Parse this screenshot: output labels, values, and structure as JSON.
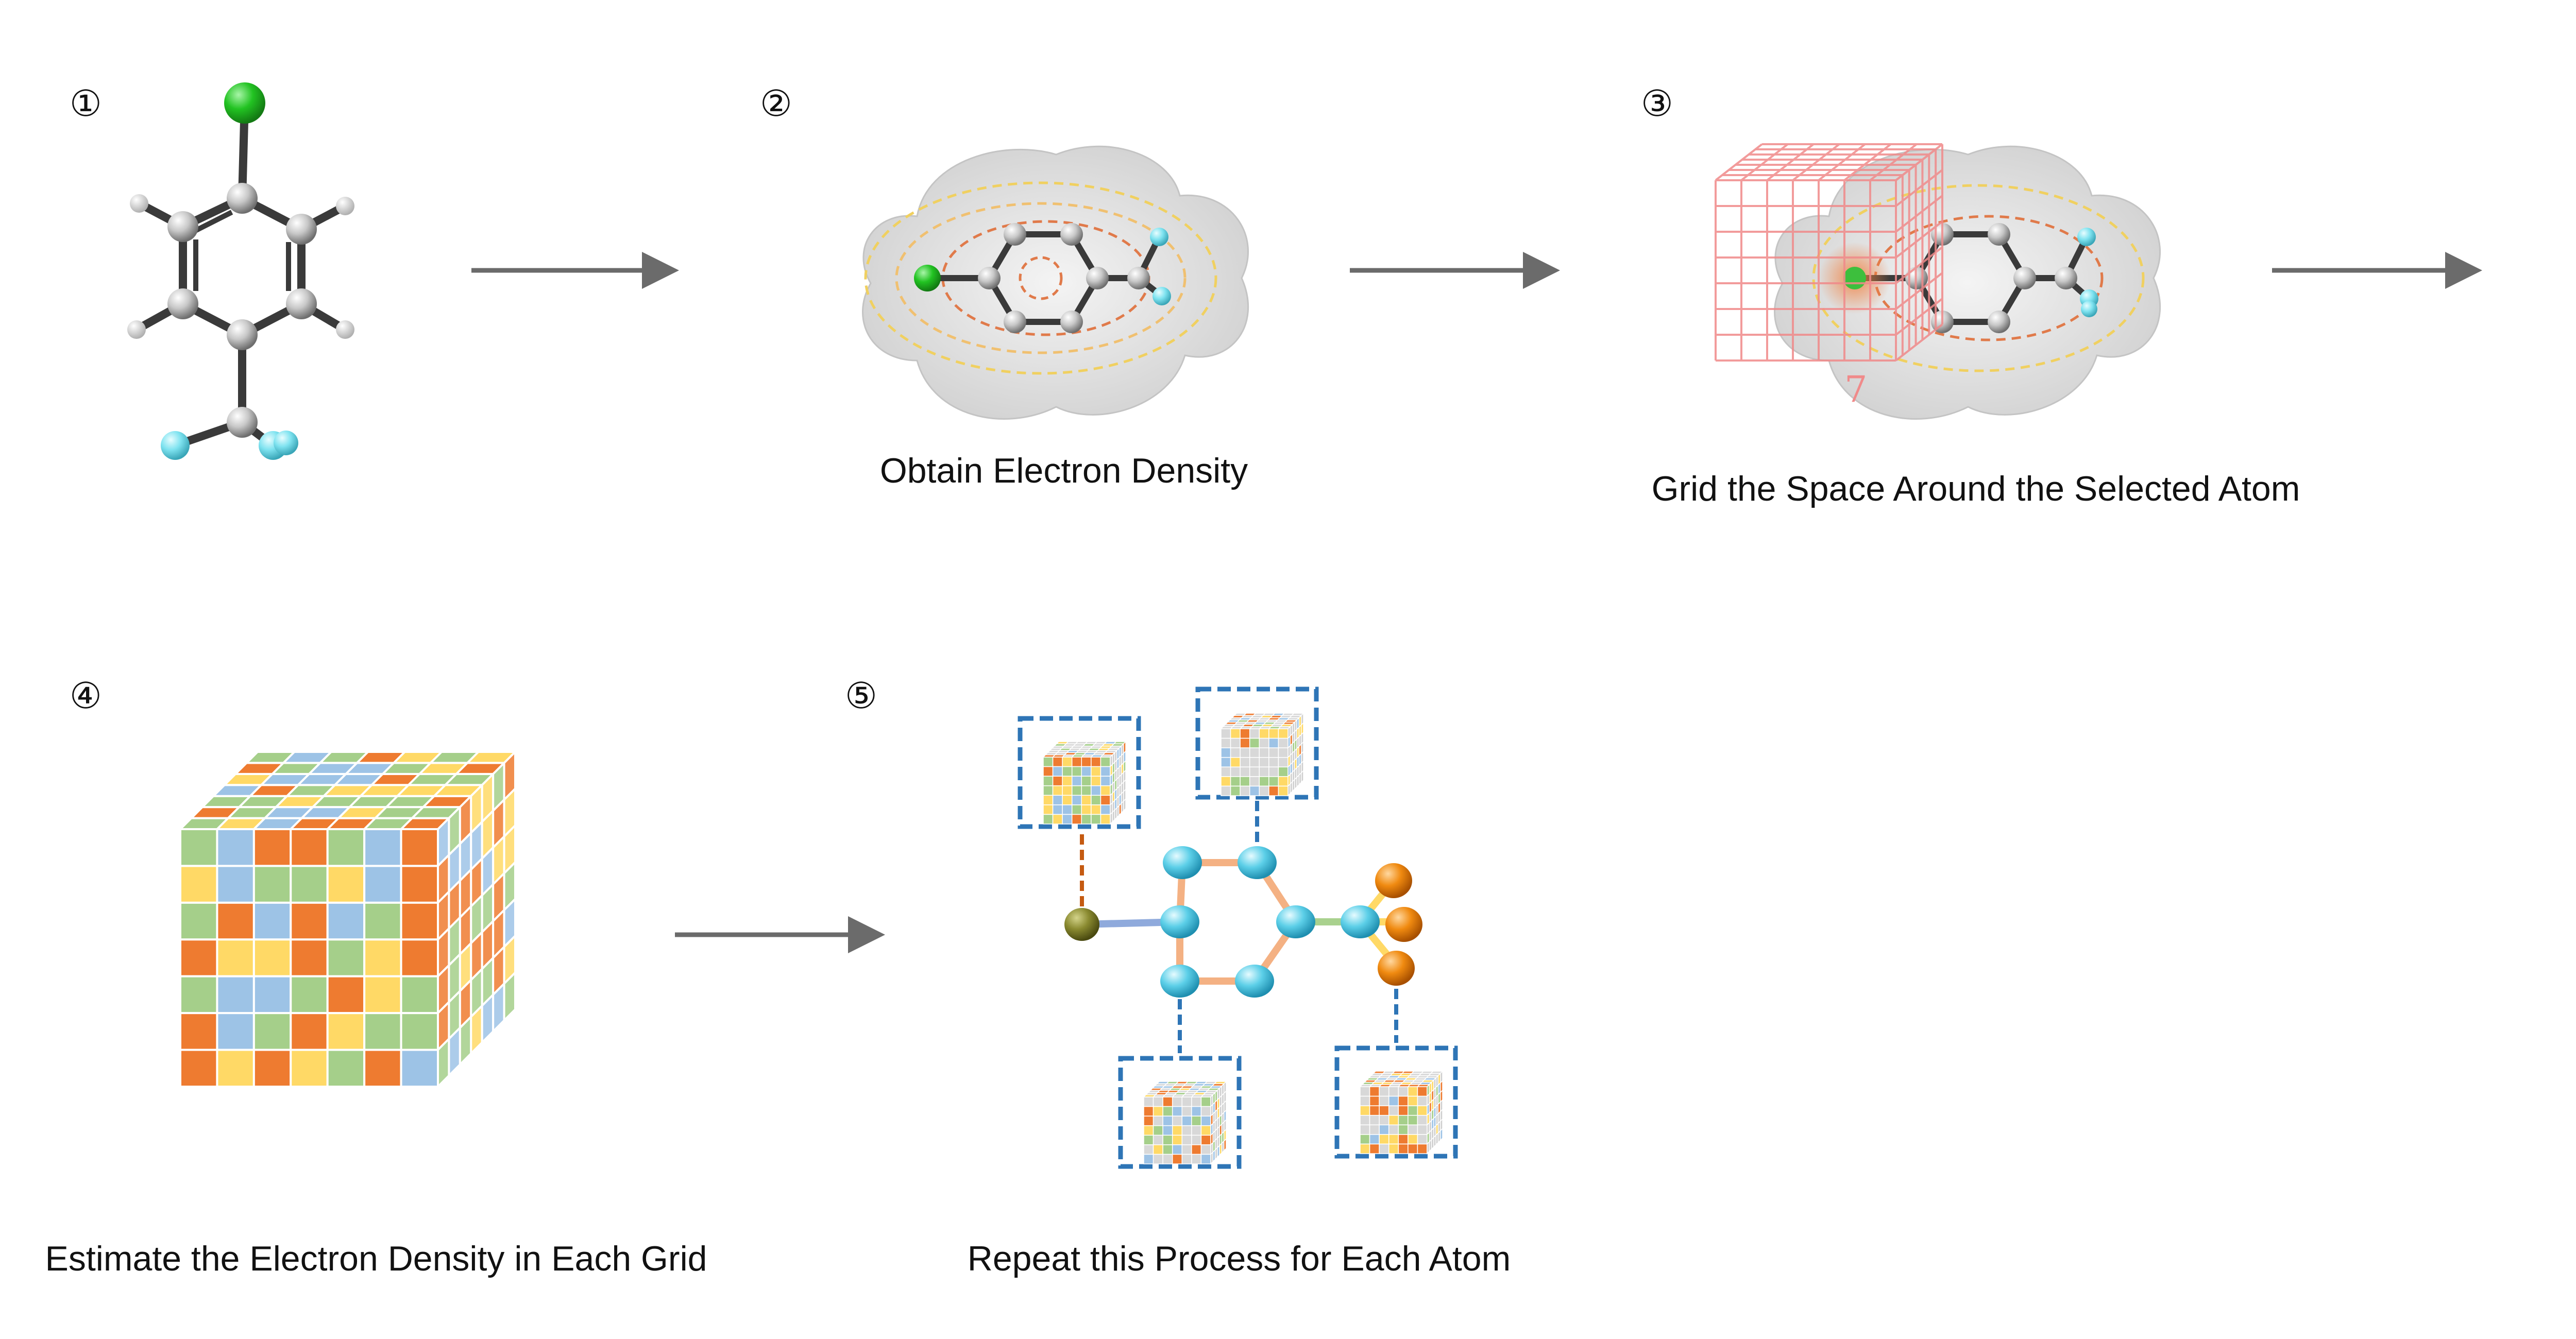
{
  "steps": [
    {
      "number": "①",
      "caption": ""
    },
    {
      "number": "②",
      "caption": "Obtain Electron Density"
    },
    {
      "number": "③",
      "caption": "Grid the Space Around the Selected Atom",
      "grid_size_label": "7"
    },
    {
      "number": "④",
      "caption": "Estimate the Electron Density in Each Grid"
    },
    {
      "number": "⑤",
      "caption": "Repeat this Process for Each Atom"
    }
  ],
  "colors": {
    "arrow": "#6b6b6b",
    "chlorine": "#22c322",
    "carbon": "#b8b8b8",
    "hydrogen": "#f2f2f2",
    "fluorine": "#7fe3f0",
    "bond": "#3a3a3a",
    "density_cloud": "#d9d9d9",
    "contour_inner": "#e07a4a",
    "contour_outer": "#f0d060",
    "grid": "#f08a8a",
    "cell_orange": "#ee7b30",
    "cell_green": "#a5cf8a",
    "cell_blue": "#9dc3e6",
    "cell_yellow": "#ffd966",
    "node_cyan": "#5ccfe8",
    "node_olive": "#8a8a30",
    "node_orange": "#f08a10",
    "edge_salmon": "#f4b183",
    "dashed_box": "#2e75b6"
  }
}
